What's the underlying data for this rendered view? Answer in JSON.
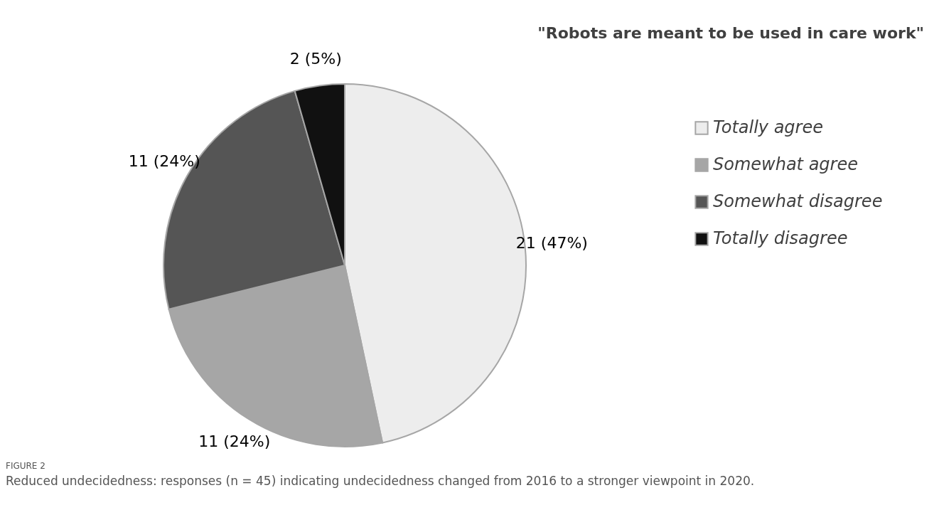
{
  "chart_data": {
    "type": "pie",
    "title": "\"Robots are meant to be used in care work\"",
    "categories": [
      "Totally agree",
      "Somewhat agree",
      "Somewhat disagree",
      "Totally disagree"
    ],
    "values": [
      21,
      11,
      11,
      2
    ],
    "colors": [
      "#ededed",
      "#a6a6a6",
      "#555555",
      "#111111"
    ],
    "value_labels": [
      "21 (47%)",
      "11 (24%)",
      "11 (24%)",
      "2 (5%)"
    ],
    "legend": "right",
    "annotations": [
      "FIGURE 2",
      "Reduced undecidedness: responses (n = 45) indicating undecidedness changed from 2016 to a stronger viewpoint in 2020."
    ]
  }
}
